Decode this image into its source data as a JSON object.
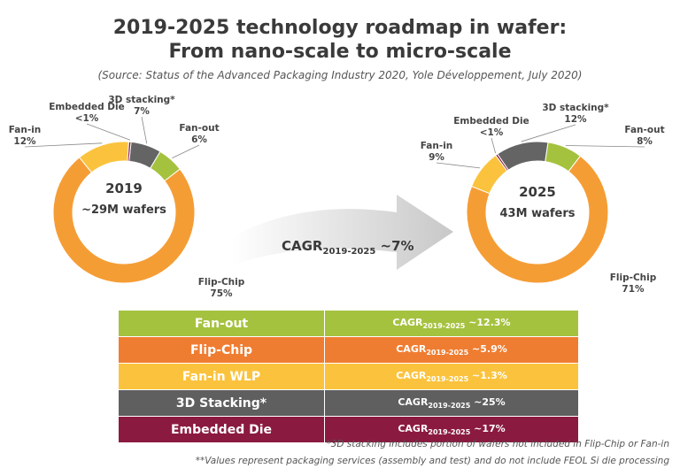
{
  "title_line1": "2019-2025 technology roadmap in wafer:",
  "title_line2": "From nano-scale to micro-scale",
  "source": "(Source: Status of the Advanced Packaging Industry 2020, Yole Développement, July 2020)",
  "chart_data": [
    {
      "type": "pie",
      "center_year": "2019",
      "center_value": "~29M wafers",
      "slices": [
        {
          "name": "3D stacking*",
          "label": "7%",
          "value": 7,
          "color": "#a5c23f"
        },
        {
          "name": "Flip-Chip",
          "label": "75%",
          "value": 75,
          "color": "#f59d35"
        },
        {
          "name": "Fan-out",
          "label": "6%",
          "value": 6,
          "color": "#a5c23f"
        },
        {
          "name": "Fan-in",
          "label": "12%",
          "value": 12,
          "color": "#fbc33d"
        },
        {
          "name": "Embedded Die",
          "label": "<1%",
          "value": 0.5,
          "color": "#8b1a41"
        }
      ]
    },
    {
      "type": "pie",
      "center_year": "2025",
      "center_value": "43M wafers",
      "slices": [
        {
          "name": "3D stacking*",
          "label": "12%",
          "value": 12,
          "color": "#646464"
        },
        {
          "name": "Fan-out",
          "label": "8%",
          "value": 8,
          "color": "#a5c23f"
        },
        {
          "name": "Flip-Chip",
          "label": "71%",
          "value": 71,
          "color": "#f59d35"
        },
        {
          "name": "Fan-in",
          "label": "9%",
          "value": 9,
          "color": "#fbc33d"
        },
        {
          "name": "Embedded Die",
          "label": "<1%",
          "value": 0.5,
          "color": "#8b1a41"
        }
      ]
    }
  ],
  "arrow": {
    "prefix": "CAGR",
    "sub": "2019-2025",
    "value": " ~7%"
  },
  "table": [
    {
      "name": "Fan-out",
      "prefix": "CAGR",
      "sub": "2019-2025",
      "value": " ~12.3%",
      "color": "#a5c23f"
    },
    {
      "name": "Flip-Chip",
      "prefix": "CAGR",
      "sub": "2019-2025",
      "value": " ~5.9%",
      "color": "#ef7d31"
    },
    {
      "name": "Fan-in WLP",
      "prefix": "CAGR",
      "sub": "2019-2025",
      "value": " ~1.3%",
      "color": "#fbc33d"
    },
    {
      "name": "3D Stacking*",
      "prefix": "CAGR",
      "sub": "2019-2025",
      "value": " ~25%",
      "color": "#5f5f5f"
    },
    {
      "name": "Embedded Die",
      "prefix": "CAGR",
      "sub": "2019-2025",
      "value": " ~17%",
      "color": "#8b1a41"
    }
  ],
  "footnote1": "*3D stacking includes portion of wafers not included in Flip-Chip or Fan-in",
  "footnote2": "**Values represent packaging services (assembly and test) and do not include FEOL Si die processing"
}
